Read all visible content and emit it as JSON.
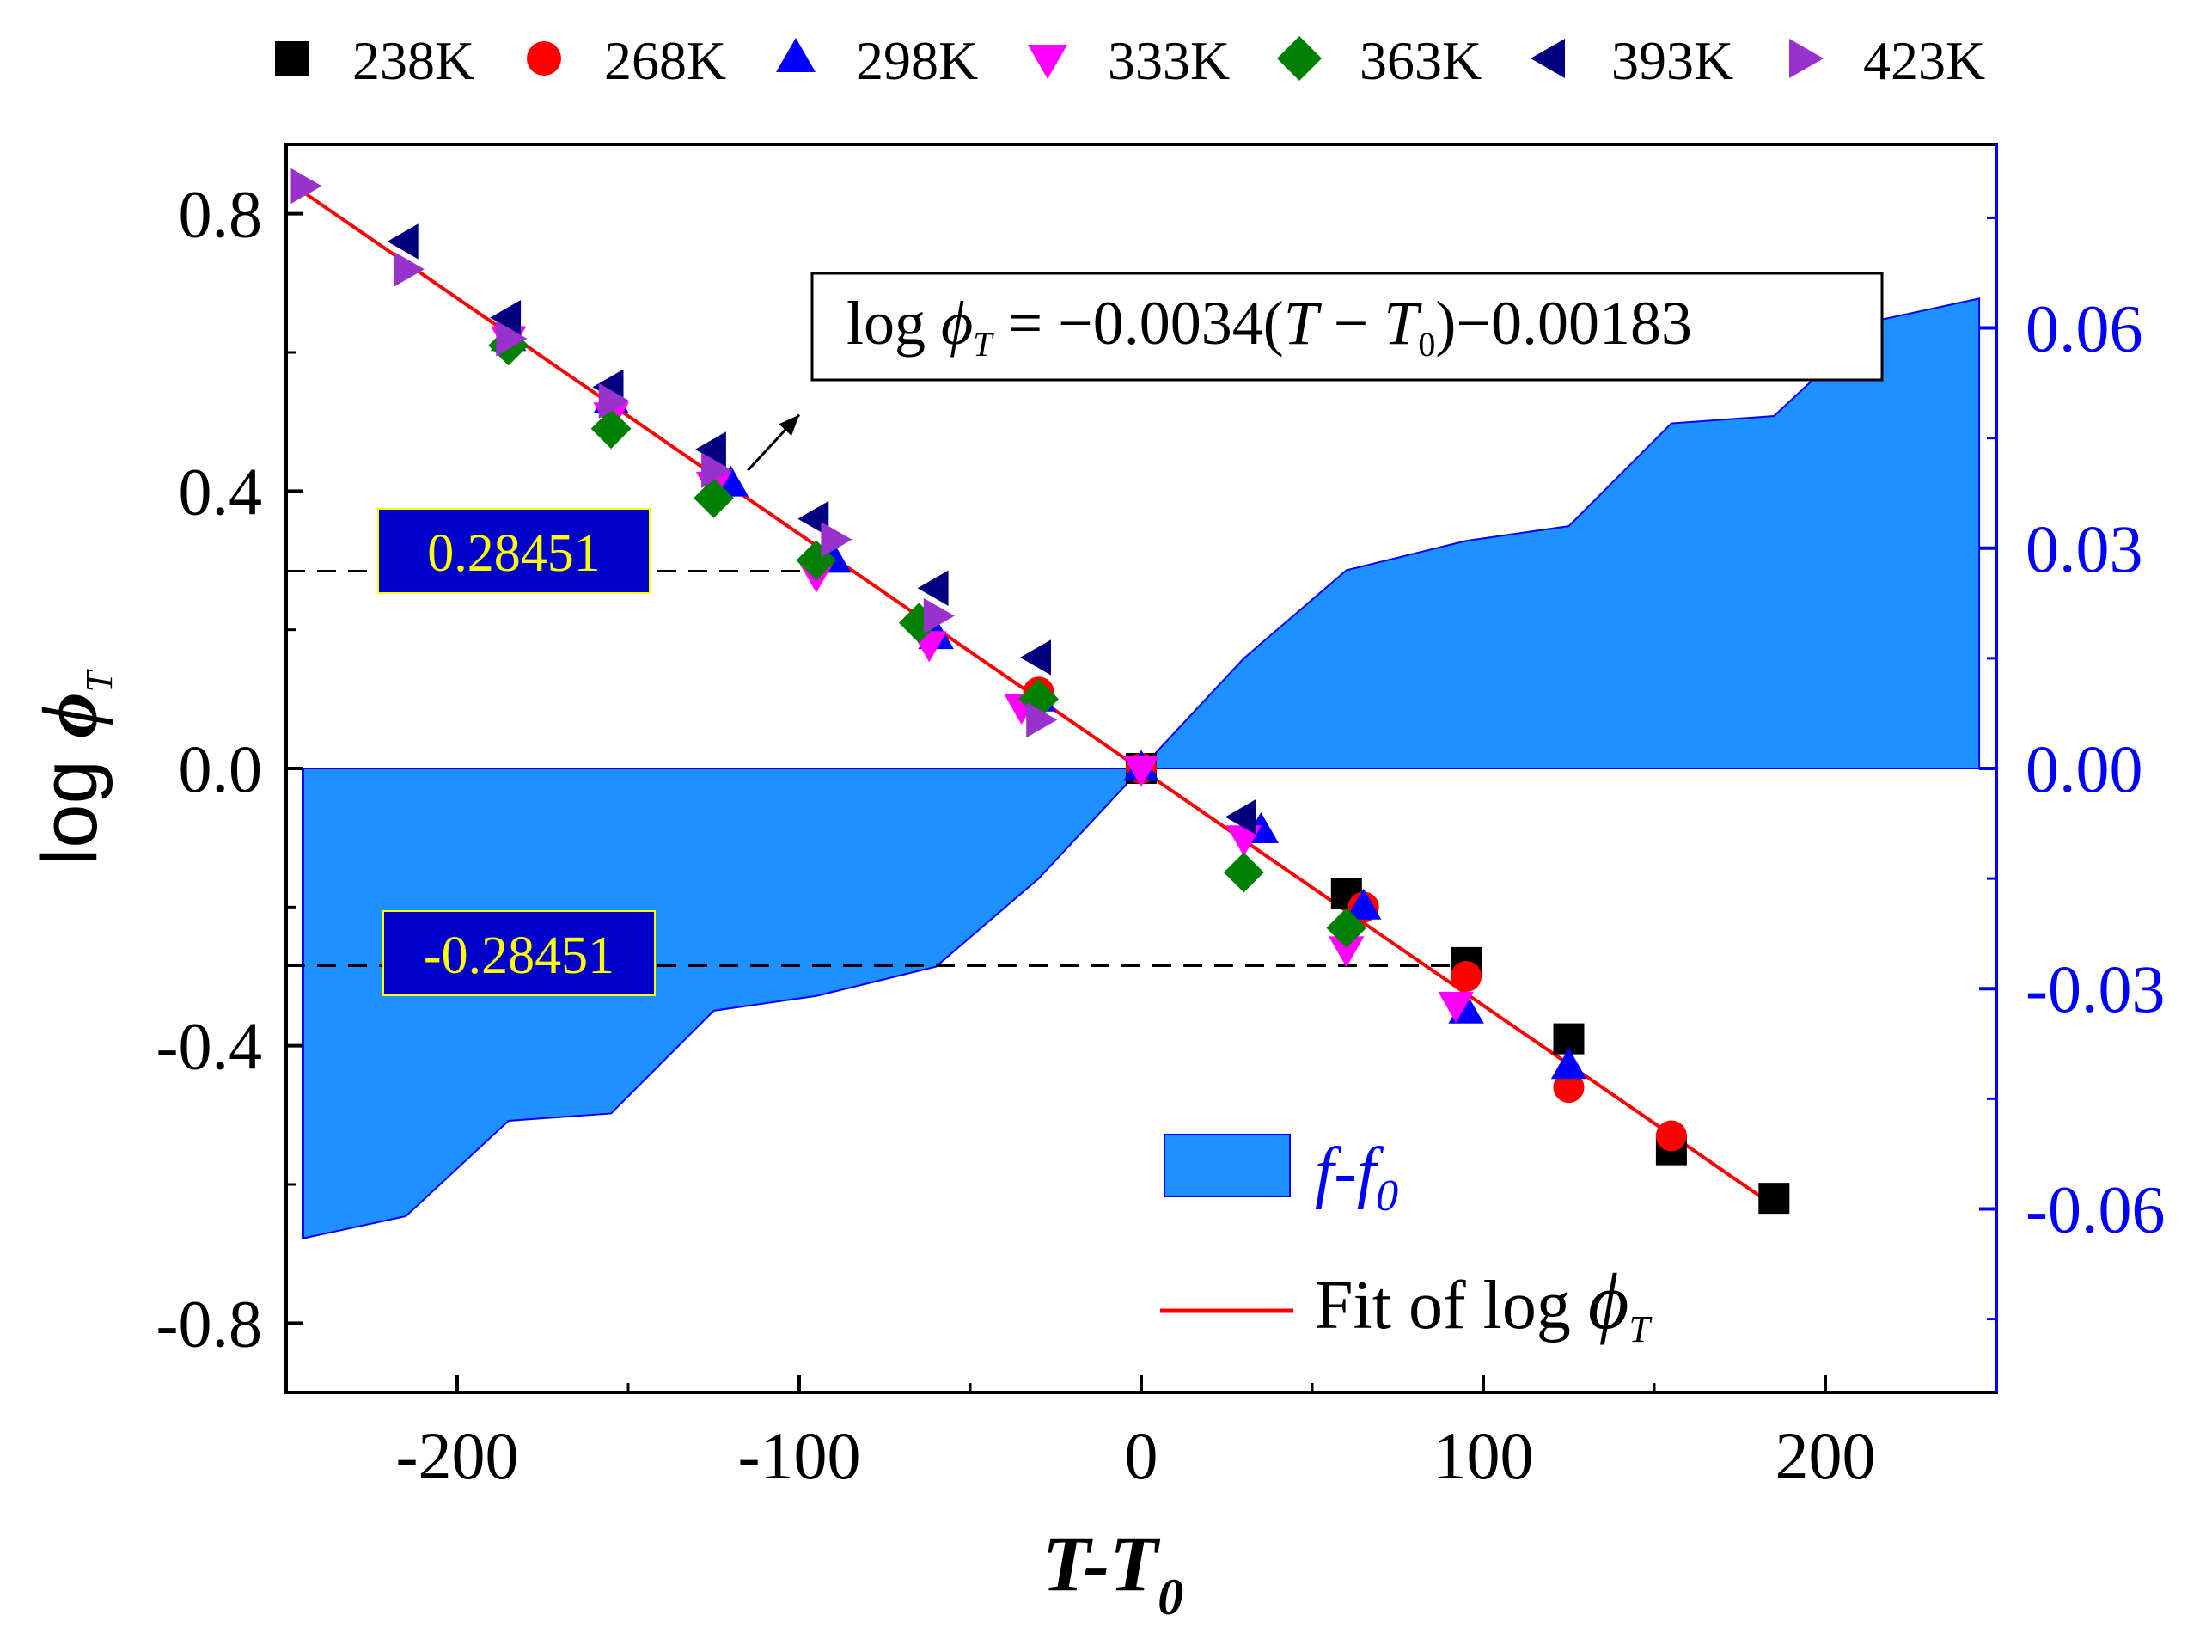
{
  "chart_data": {
    "type": "scatter",
    "title": "",
    "xlabel": {
      "main": "T-T",
      "sub": "0"
    },
    "ylabel": {
      "main": "log ",
      "symbol": "ϕ",
      "sub": "T"
    },
    "xlim": [
      -250,
      250
    ],
    "ylim": [
      -0.9,
      0.9
    ],
    "y2lim": [
      -0.085,
      0.085
    ],
    "x_ticks": [
      -200,
      -100,
      0,
      100,
      200
    ],
    "x_tick_labels": [
      "-200",
      "-100",
      "0",
      "100",
      "200"
    ],
    "y_ticks": [
      -0.8,
      -0.4,
      0.0,
      0.4,
      0.8
    ],
    "y_tick_labels": [
      "-0.8",
      "-0.4",
      "0.0",
      "0.4",
      "0.8"
    ],
    "y2_ticks": [
      -0.06,
      -0.03,
      0.0,
      0.03,
      0.06
    ],
    "y2_tick_labels": [
      "-0.06",
      "-0.03",
      "0.00",
      "0.03",
      "0.06"
    ],
    "colors": {
      "axis": "#000000",
      "right_axis": "#0000ff",
      "area": "#1e90ff",
      "fit": "#ff0000",
      "label_box": "#0000cc",
      "label_text": "#ffff00"
    },
    "legend_top": [
      {
        "label": "238K",
        "marker": "square",
        "color": "#000000"
      },
      {
        "label": "268K",
        "marker": "circle",
        "color": "#ff0000"
      },
      {
        "label": "298K",
        "marker": "triangle-up",
        "color": "#0000ff"
      },
      {
        "label": "333K",
        "marker": "triangle-down",
        "color": "#ff00ff"
      },
      {
        "label": "363K",
        "marker": "diamond",
        "color": "#008000"
      },
      {
        "label": "393K",
        "marker": "triangle-left",
        "color": "#000080"
      },
      {
        "label": "423K",
        "marker": "triangle-right",
        "color": "#9932cc"
      }
    ],
    "series": [
      {
        "name": "238K",
        "marker": "square",
        "color": "#000000",
        "x": [
          0,
          60,
          95,
          125,
          155,
          185
        ],
        "y": [
          0,
          -0.18,
          -0.28,
          -0.39,
          -0.55,
          -0.62
        ]
      },
      {
        "name": "268K",
        "marker": "circle",
        "color": "#ff0000",
        "x": [
          -30,
          0,
          65,
          95,
          125,
          155
        ],
        "y": [
          0.11,
          0,
          -0.2,
          -0.3,
          -0.46,
          -0.53
        ]
      },
      {
        "name": "298K",
        "marker": "triangle-up",
        "color": "#0000ff",
        "x": [
          -185,
          -155,
          -120,
          -90,
          -60,
          -30,
          0,
          35,
          65,
          95,
          125
        ],
        "y": [
          0.62,
          0.53,
          0.41,
          0.3,
          0.19,
          0.1,
          0,
          -0.09,
          -0.2,
          -0.35,
          -0.43
        ]
      },
      {
        "name": "333K",
        "marker": "triangle-down",
        "color": "#ff00ff",
        "x": [
          -185,
          -155,
          -125,
          -95,
          -62,
          -35,
          0,
          30,
          60,
          92
        ],
        "y": [
          0.62,
          0.51,
          0.41,
          0.28,
          0.18,
          0.09,
          0,
          -0.1,
          -0.26,
          -0.34
        ]
      },
      {
        "name": "363K",
        "marker": "diamond",
        "color": "#008000",
        "x": [
          -185,
          -155,
          -125,
          -95,
          -65,
          -30,
          30,
          60
        ],
        "y": [
          0.61,
          0.49,
          0.39,
          0.3,
          0.21,
          0.1,
          -0.15,
          -0.23
        ]
      },
      {
        "name": "393K",
        "marker": "triangle-left",
        "color": "#000080",
        "x": [
          -215,
          -185,
          -155,
          -125,
          -95,
          -60,
          -30,
          30
        ],
        "y": [
          0.76,
          0.65,
          0.55,
          0.46,
          0.36,
          0.26,
          0.16,
          -0.07
        ]
      },
      {
        "name": "423K",
        "marker": "triangle-right",
        "color": "#9932cc",
        "x": [
          -245,
          -215,
          -185,
          -155,
          -125,
          -90,
          -60,
          -30
        ],
        "y": [
          0.84,
          0.72,
          0.62,
          0.53,
          0.43,
          0.33,
          0.22,
          0.07
        ]
      }
    ],
    "fit_line": {
      "name": "Fit of log ϕT",
      "slope": -0.0034,
      "intercept": -0.00183,
      "x_range": [
        -245,
        185
      ]
    },
    "area_series": {
      "name": "f-f0",
      "x": [
        -245,
        -215,
        -185,
        -155,
        -125,
        -95,
        -60,
        -30,
        0,
        30,
        60,
        95,
        125,
        155,
        185,
        215,
        245
      ],
      "y": [
        -0.064,
        -0.061,
        -0.048,
        -0.047,
        -0.033,
        -0.031,
        -0.027,
        -0.015,
        0,
        0.015,
        0.027,
        0.031,
        0.033,
        0.047,
        0.048,
        0.061,
        0.064
      ]
    },
    "reference_lines": [
      {
        "value": 0.28451,
        "label": "0.28451",
        "from_x": -250,
        "to_x": -95
      },
      {
        "value": -0.28451,
        "label": "-0.28451",
        "from_x": -250,
        "to_x": 95
      }
    ],
    "annotation": {
      "text_prefix": "log ",
      "symbol": "ϕ",
      "sub_T": "T",
      "eq_mid": " = −0.0034(",
      "eq_T": "T",
      "eq_minus": " − ",
      "eq_T0": "T",
      "sub_0": "0",
      "eq_end": ")−0.00183",
      "arrow_from": [
        -115,
        0.43
      ],
      "arrow_to": [
        -100,
        0.51
      ]
    },
    "legend_inner": {
      "area_label_main": "f-f",
      "area_label_sub": "0",
      "fit_label_main": "Fit of log ",
      "fit_symbol": "ϕ",
      "fit_sub": "T"
    }
  }
}
